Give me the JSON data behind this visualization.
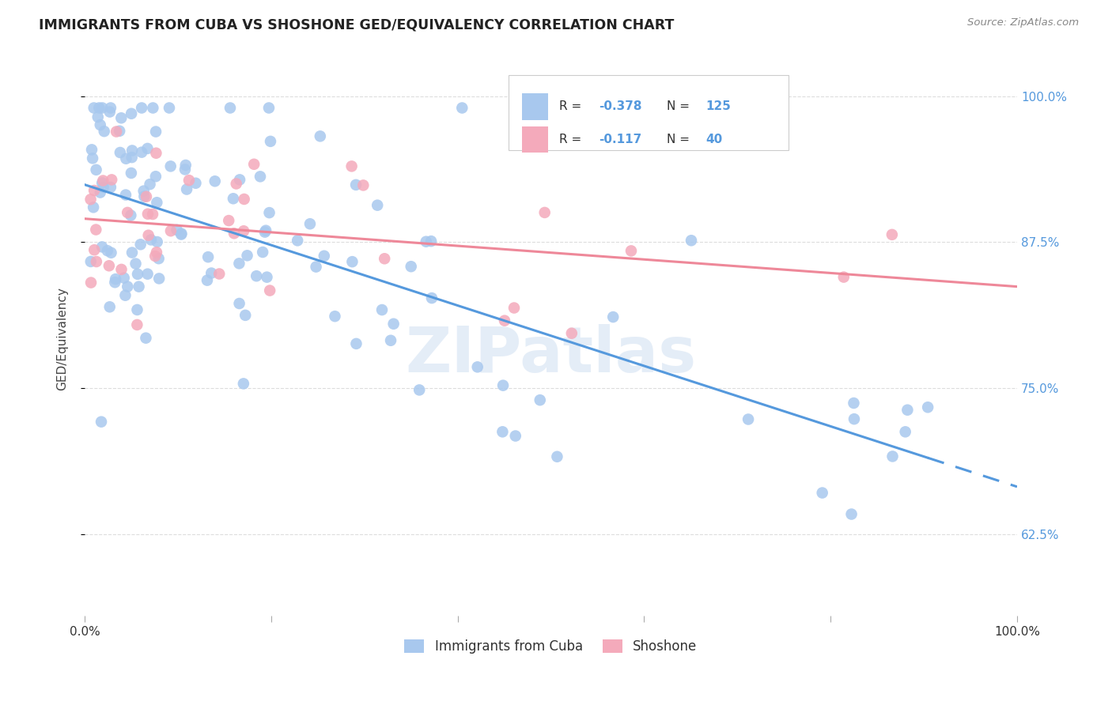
{
  "title": "IMMIGRANTS FROM CUBA VS SHOSHONE GED/EQUIVALENCY CORRELATION CHART",
  "source": "Source: ZipAtlas.com",
  "ylabel": "GED/Equivalency",
  "ytick_vals": [
    0.625,
    0.75,
    0.875,
    1.0
  ],
  "ytick_labels": [
    "62.5%",
    "75.0%",
    "87.5%",
    "100.0%"
  ],
  "xlim": [
    0.0,
    1.0
  ],
  "ylim": [
    0.555,
    1.03
  ],
  "blue_R": -0.378,
  "blue_N": 125,
  "pink_R": -0.117,
  "pink_N": 40,
  "blue_color": "#A8C8EE",
  "pink_color": "#F4AABB",
  "blue_line_color": "#5599DD",
  "pink_line_color": "#EE8899",
  "legend_label_blue": "Immigrants from Cuba",
  "legend_label_pink": "Shoshone",
  "watermark": "ZIPatlas",
  "grid_color": "#DDDDDD",
  "title_color": "#222222",
  "source_color": "#888888",
  "right_tick_color": "#5599DD"
}
